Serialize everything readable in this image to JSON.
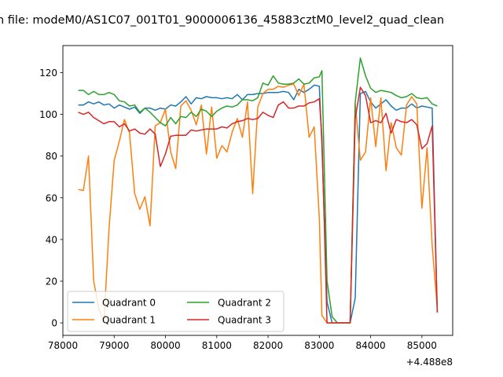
{
  "chart_data": {
    "type": "line",
    "title": "n file: modeM0/AS1C07_001T01_9000006136_45883cztM0_level2_quad_clean",
    "xlabel": "",
    "ylabel": "",
    "offset_text": "+4.488e8",
    "xlim": [
      78000,
      85600
    ],
    "ylim": [
      -6,
      133
    ],
    "xticks": [
      78000,
      79000,
      80000,
      81000,
      82000,
      83000,
      84000,
      85000
    ],
    "xtick_labels": [
      "78000",
      "79000",
      "80000",
      "81000",
      "82000",
      "83000",
      "84000",
      "85000"
    ],
    "yticks": [
      0,
      20,
      40,
      60,
      80,
      100,
      120
    ],
    "ytick_labels": [
      "0",
      "20",
      "40",
      "60",
      "80",
      "100",
      "120"
    ],
    "grid": false,
    "legend_position": "lower-left",
    "x": [
      78300,
      78400,
      78500,
      78600,
      78700,
      78800,
      78900,
      79000,
      79100,
      79200,
      79300,
      79400,
      79500,
      79600,
      79700,
      79800,
      79900,
      80000,
      80100,
      80200,
      80300,
      80400,
      80500,
      80600,
      80700,
      80800,
      80900,
      81000,
      81100,
      81200,
      81300,
      81400,
      81500,
      81600,
      81700,
      81800,
      81900,
      82000,
      82100,
      82200,
      82300,
      82400,
      82500,
      82600,
      82700,
      82800,
      82900,
      83000,
      83050,
      83150,
      83250,
      83350,
      83450,
      83600,
      83700,
      83800,
      83900,
      84000,
      84100,
      84200,
      84300,
      84400,
      84500,
      84600,
      84700,
      84800,
      84900,
      85000,
      85100,
      85200,
      85300
    ],
    "series": [
      {
        "name": "Quadrant 0",
        "color": "#1f77b4",
        "values": [
          104.5,
          104.5,
          106,
          105,
          106,
          104.5,
          105,
          103,
          104.5,
          103.5,
          102.5,
          103.5,
          100.5,
          103,
          103,
          102,
          103,
          102.5,
          104.5,
          104,
          106,
          108.5,
          105,
          108,
          107.5,
          108.5,
          108,
          108,
          107.5,
          108,
          107.5,
          109.5,
          107,
          109.5,
          109.5,
          110,
          110,
          110.5,
          110.5,
          110.5,
          111,
          110.5,
          107,
          112,
          110.5,
          112,
          114,
          113.5,
          85,
          10,
          0,
          0,
          0,
          0,
          12,
          110,
          111,
          106,
          103,
          105,
          107,
          104,
          102,
          103,
          103,
          105,
          103,
          104,
          103.5,
          103,
          5
        ]
      },
      {
        "name": "Quadrant 1",
        "color": "#ff7f0e",
        "values": [
          64,
          63.5,
          80,
          20,
          7,
          0,
          45,
          78,
          87,
          97.5,
          91,
          62,
          54.5,
          60.5,
          46.5,
          94.5,
          96,
          102.5,
          82,
          74,
          104,
          106.5,
          102,
          95,
          104.5,
          81,
          103.5,
          79,
          85,
          82,
          91.5,
          98,
          89,
          106,
          62,
          103.5,
          110,
          112,
          112,
          113.5,
          113,
          114,
          114.5,
          109,
          114.5,
          89,
          94,
          50,
          3.5,
          0,
          0,
          0,
          0,
          0,
          105,
          78,
          82,
          108,
          84.5,
          108,
          73,
          96,
          84,
          80.5,
          104.5,
          108.5,
          105,
          55,
          84,
          37,
          7
        ]
      },
      {
        "name": "Quadrant 2",
        "color": "#2ca02c",
        "values": [
          111.5,
          111.5,
          109.5,
          111,
          109.5,
          109.5,
          110.5,
          109.5,
          106.5,
          106,
          104,
          104.5,
          101,
          103,
          101,
          98.5,
          96,
          94.5,
          98.5,
          95.5,
          99,
          98.5,
          101,
          99,
          102.5,
          101.5,
          99,
          101.5,
          103,
          104,
          103.5,
          104.5,
          107,
          107,
          106.5,
          108,
          115,
          114,
          118.5,
          115,
          114.5,
          114.5,
          115,
          117,
          114.5,
          115,
          117.5,
          118,
          121,
          20,
          3,
          0,
          0,
          0,
          106,
          127,
          118.5,
          112.5,
          110.5,
          111.5,
          111,
          110.5,
          109,
          108,
          108.5,
          110,
          108,
          107.5,
          108,
          105,
          104
        ]
      },
      {
        "name": "Quadrant 3",
        "color": "#d62728",
        "values": [
          101,
          100,
          101,
          98.5,
          97,
          95.5,
          96.5,
          96.5,
          94,
          95.5,
          92,
          93,
          91,
          90.5,
          93,
          90.5,
          75,
          81,
          89.5,
          90,
          90,
          90,
          92.5,
          92,
          92.5,
          93,
          93,
          93,
          94,
          93.5,
          95.5,
          96.5,
          97,
          98,
          97.5,
          98,
          101,
          99.5,
          98.5,
          104.5,
          106,
          103,
          103,
          104,
          104,
          105.5,
          106,
          107.5,
          89,
          0,
          0,
          0,
          0,
          0,
          98,
          113,
          109,
          96,
          97,
          96,
          100.5,
          91,
          97.5,
          96.5,
          96,
          97.5,
          95,
          83.5,
          86,
          94.5,
          5
        ]
      }
    ]
  }
}
